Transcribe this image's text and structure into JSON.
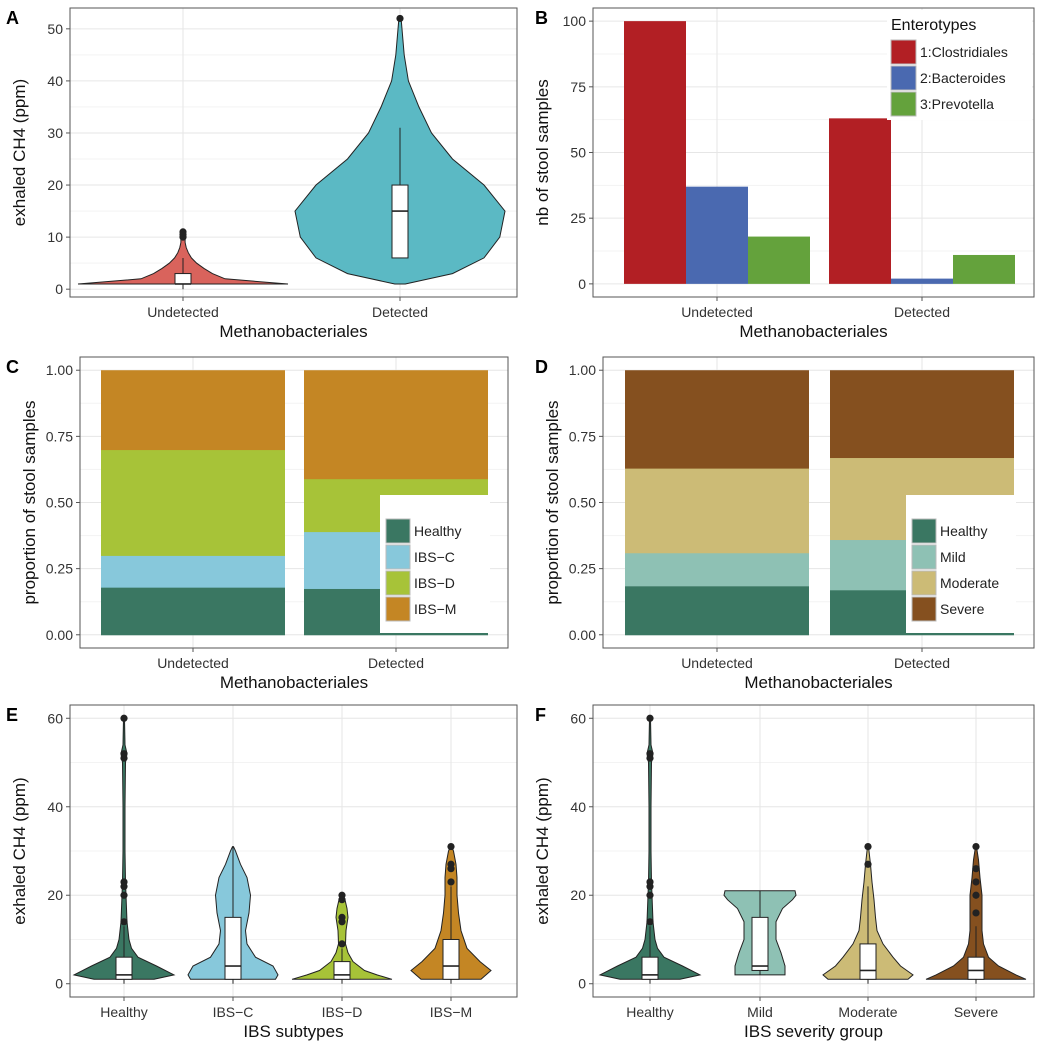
{
  "panels": [
    {
      "id": "A",
      "letter": "A",
      "chart_data": {
        "type": "violin",
        "xlabel": "Methanobacteriales",
        "ylabel": "exhaled CH4 (ppm)",
        "ylim": [
          -1.5,
          54
        ],
        "yticks": [
          0,
          10,
          20,
          30,
          40,
          50
        ],
        "grid": true,
        "categories": [
          "Undetected",
          "Detected"
        ],
        "groups": [
          {
            "label": "Undetected",
            "color": "#d9635c",
            "density": [
              [
                1,
                1.0
              ],
              [
                2,
                0.4
              ],
              [
                3,
                0.28
              ],
              [
                4,
                0.2
              ],
              [
                5,
                0.13
              ],
              [
                6,
                0.08
              ],
              [
                7,
                0.05
              ],
              [
                8,
                0.03
              ],
              [
                9,
                0.02
              ],
              [
                10,
                0.02
              ],
              [
                11,
                0.01
              ]
            ],
            "box": {
              "min": 0,
              "q1": 1,
              "median": 1,
              "q3": 3,
              "max": 6
            },
            "outliers": [
              10,
              10.5,
              11
            ]
          },
          {
            "label": "Detected",
            "color": "#5bb9c4",
            "density": [
              [
                1,
                0.05
              ],
              [
                3,
                0.5
              ],
              [
                6,
                0.8
              ],
              [
                10,
                0.95
              ],
              [
                15,
                1.0
              ],
              [
                20,
                0.8
              ],
              [
                25,
                0.5
              ],
              [
                30,
                0.3
              ],
              [
                35,
                0.18
              ],
              [
                40,
                0.08
              ],
              [
                45,
                0.04
              ],
              [
                52,
                0.01
              ]
            ],
            "box": {
              "min": 6,
              "q1": 6,
              "median": 15,
              "q3": 20,
              "max": 31
            },
            "outliers": [
              52
            ]
          }
        ]
      }
    },
    {
      "id": "B",
      "letter": "B",
      "chart_data": {
        "type": "bar",
        "xlabel": "Methanobacteriales",
        "ylabel": "nb of stool samples",
        "ylim": [
          -5,
          105
        ],
        "yticks": [
          0,
          25,
          50,
          75,
          100
        ],
        "grid": true,
        "categories": [
          "Undetected",
          "Detected"
        ],
        "series": [
          {
            "name": "1:Clostridiales",
            "color": "#b21f24",
            "values": [
              100,
              63
            ]
          },
          {
            "name": "2:Bacteroides",
            "color": "#4a69b0",
            "values": [
              37,
              2
            ]
          },
          {
            "name": "3:Prevotella",
            "color": "#64a23c",
            "values": [
              18,
              11
            ]
          }
        ],
        "legend": {
          "title": "Enterotypes",
          "position": "top-right"
        }
      }
    },
    {
      "id": "C",
      "letter": "C",
      "chart_data": {
        "type": "stacked_bar",
        "xlabel": "Methanobacteriales",
        "ylabel": "proportion of stool samples",
        "ylim": [
          -0.05,
          1.05
        ],
        "yticks": [
          "0.00",
          "0.25",
          "0.50",
          "0.75",
          "1.00"
        ],
        "grid": true,
        "categories": [
          "Undetected",
          "Detected"
        ],
        "series": [
          {
            "name": "Healthy",
            "color": "#3a7762",
            "values": [
              0.18,
              0.175
            ]
          },
          {
            "name": "IBS−C",
            "color": "#87c8db",
            "values": [
              0.12,
              0.215
            ]
          },
          {
            "name": "IBS−D",
            "color": "#a7c338",
            "values": [
              0.4,
              0.2
            ]
          },
          {
            "name": "IBS−M",
            "color": "#c48624",
            "values": [
              0.3,
              0.41
            ]
          }
        ],
        "legend": {
          "title": "",
          "position": "bottom-right"
        }
      }
    },
    {
      "id": "D",
      "letter": "D",
      "chart_data": {
        "type": "stacked_bar",
        "xlabel": "Methanobacteriales",
        "ylabel": "proportion of stool samples",
        "ylim": [
          -0.05,
          1.05
        ],
        "yticks": [
          "0.00",
          "0.25",
          "0.50",
          "0.75",
          "1.00"
        ],
        "grid": true,
        "categories": [
          "Undetected",
          "Detected"
        ],
        "series": [
          {
            "name": "Healthy",
            "color": "#3a7762",
            "values": [
              0.185,
              0.17
            ]
          },
          {
            "name": "Mild",
            "color": "#8ec1b4",
            "values": [
              0.125,
              0.19
            ]
          },
          {
            "name": "Moderate",
            "color": "#ccbb76",
            "values": [
              0.32,
              0.31
            ]
          },
          {
            "name": "Severe",
            "color": "#85501f",
            "values": [
              0.37,
              0.33
            ]
          }
        ],
        "legend": {
          "title": "",
          "position": "bottom-right"
        }
      }
    },
    {
      "id": "E",
      "letter": "E",
      "chart_data": {
        "type": "violin",
        "xlabel": "IBS subtypes",
        "ylabel": "exhaled CH4 (ppm)",
        "ylim": [
          -3,
          63
        ],
        "yticks": [
          0,
          20,
          40,
          60
        ],
        "grid": true,
        "categories": [
          "Healthy",
          "IBS−C",
          "IBS−D",
          "IBS−M"
        ],
        "groups": [
          {
            "label": "Healthy",
            "color": "#3a7762",
            "density": [
              [
                1,
                0.6
              ],
              [
                2,
                1.0
              ],
              [
                4,
                0.65
              ],
              [
                6,
                0.28
              ],
              [
                8,
                0.15
              ],
              [
                10,
                0.1
              ],
              [
                14,
                0.06
              ],
              [
                20,
                0.04
              ],
              [
                23,
                0.03
              ],
              [
                30,
                0.02
              ],
              [
                40,
                0.02
              ],
              [
                50,
                0.03
              ],
              [
                52,
                0.06
              ],
              [
                54,
                0.02
              ],
              [
                60,
                0.01
              ]
            ],
            "box": {
              "min": 0,
              "q1": 1,
              "median": 2,
              "q3": 6,
              "max": 13
            },
            "outliers": [
              14,
              20,
              22,
              23,
              51,
              52,
              60
            ]
          },
          {
            "label": "IBS−C",
            "color": "#87c8db",
            "density": [
              [
                1,
                0.85
              ],
              [
                2,
                0.9
              ],
              [
                4,
                0.8
              ],
              [
                6,
                0.45
              ],
              [
                9,
                0.28
              ],
              [
                12,
                0.25
              ],
              [
                16,
                0.32
              ],
              [
                20,
                0.35
              ],
              [
                24,
                0.28
              ],
              [
                27,
                0.15
              ],
              [
                30,
                0.05
              ],
              [
                31,
                0.01
              ]
            ],
            "box": {
              "min": 0,
              "q1": 1,
              "median": 4,
              "q3": 15,
              "max": 31
            },
            "outliers": []
          },
          {
            "label": "IBS−D",
            "color": "#a7c338",
            "density": [
              [
                1,
                1.0
              ],
              [
                2,
                0.7
              ],
              [
                3,
                0.45
              ],
              [
                5,
                0.22
              ],
              [
                7,
                0.12
              ],
              [
                9,
                0.07
              ],
              [
                12,
                0.08
              ],
              [
                15,
                0.12
              ],
              [
                17,
                0.1
              ],
              [
                19,
                0.06
              ],
              [
                20,
                0.01
              ]
            ],
            "box": {
              "min": 0,
              "q1": 1,
              "median": 2,
              "q3": 5,
              "max": 8
            },
            "outliers": [
              9,
              14,
              15,
              19,
              20
            ]
          },
          {
            "label": "IBS−M",
            "color": "#c48624",
            "density": [
              [
                1,
                0.6
              ],
              [
                3,
                0.8
              ],
              [
                5,
                0.58
              ],
              [
                8,
                0.32
              ],
              [
                12,
                0.2
              ],
              [
                16,
                0.15
              ],
              [
                20,
                0.12
              ],
              [
                24,
                0.12
              ],
              [
                27,
                0.1
              ],
              [
                30,
                0.05
              ],
              [
                31,
                0.01
              ]
            ],
            "box": {
              "min": 0,
              "q1": 1,
              "median": 4,
              "q3": 10,
              "max": 22
            },
            "outliers": [
              23,
              26,
              27,
              31
            ]
          }
        ]
      }
    },
    {
      "id": "F",
      "letter": "F",
      "chart_data": {
        "type": "violin",
        "xlabel": "IBS severity group",
        "ylabel": "exhaled CH4 (ppm)",
        "ylim": [
          -3,
          63
        ],
        "yticks": [
          0,
          20,
          40,
          60
        ],
        "grid": true,
        "categories": [
          "Healthy",
          "Mild",
          "Moderate",
          "Severe"
        ],
        "groups": [
          {
            "label": "Healthy",
            "color": "#3a7762",
            "density": [
              [
                1,
                0.6
              ],
              [
                2,
                1.0
              ],
              [
                4,
                0.65
              ],
              [
                6,
                0.28
              ],
              [
                8,
                0.15
              ],
              [
                10,
                0.1
              ],
              [
                14,
                0.06
              ],
              [
                20,
                0.04
              ],
              [
                23,
                0.03
              ],
              [
                30,
                0.02
              ],
              [
                40,
                0.02
              ],
              [
                50,
                0.03
              ],
              [
                52,
                0.06
              ],
              [
                54,
                0.02
              ],
              [
                60,
                0.01
              ]
            ],
            "box": {
              "min": 0,
              "q1": 1,
              "median": 2,
              "q3": 6,
              "max": 13
            },
            "outliers": [
              14,
              20,
              22,
              23,
              51,
              52,
              60
            ]
          },
          {
            "label": "Mild",
            "color": "#8ec1b4",
            "density": [
              [
                2,
                0.5
              ],
              [
                4,
                0.5
              ],
              [
                7,
                0.42
              ],
              [
                10,
                0.32
              ],
              [
                14,
                0.32
              ],
              [
                17,
                0.45
              ],
              [
                19,
                0.65
              ],
              [
                20,
                0.72
              ],
              [
                21,
                0.7
              ]
            ],
            "box": {
              "min": 2,
              "q1": 3,
              "median": 4,
              "q3": 15,
              "max": 21
            },
            "outliers": []
          },
          {
            "label": "Moderate",
            "color": "#ccbb76",
            "density": [
              [
                1,
                0.8
              ],
              [
                2,
                0.9
              ],
              [
                4,
                0.65
              ],
              [
                6,
                0.5
              ],
              [
                9,
                0.3
              ],
              [
                12,
                0.18
              ],
              [
                15,
                0.15
              ],
              [
                19,
                0.12
              ],
              [
                23,
                0.08
              ],
              [
                27,
                0.05
              ],
              [
                31,
                0.01
              ]
            ],
            "box": {
              "min": 0,
              "q1": 1,
              "median": 3,
              "q3": 9,
              "max": 22
            },
            "outliers": [
              27,
              31
            ]
          },
          {
            "label": "Severe",
            "color": "#85501f",
            "density": [
              [
                1,
                1.0
              ],
              [
                2,
                0.8
              ],
              [
                4,
                0.45
              ],
              [
                6,
                0.25
              ],
              [
                9,
                0.15
              ],
              [
                12,
                0.12
              ],
              [
                16,
                0.12
              ],
              [
                20,
                0.12
              ],
              [
                24,
                0.08
              ],
              [
                28,
                0.05
              ],
              [
                31,
                0.01
              ]
            ],
            "box": {
              "min": 0,
              "q1": 1,
              "median": 3,
              "q3": 6,
              "max": 13
            },
            "outliers": [
              16,
              20,
              23,
              26,
              31
            ]
          }
        ]
      }
    }
  ]
}
